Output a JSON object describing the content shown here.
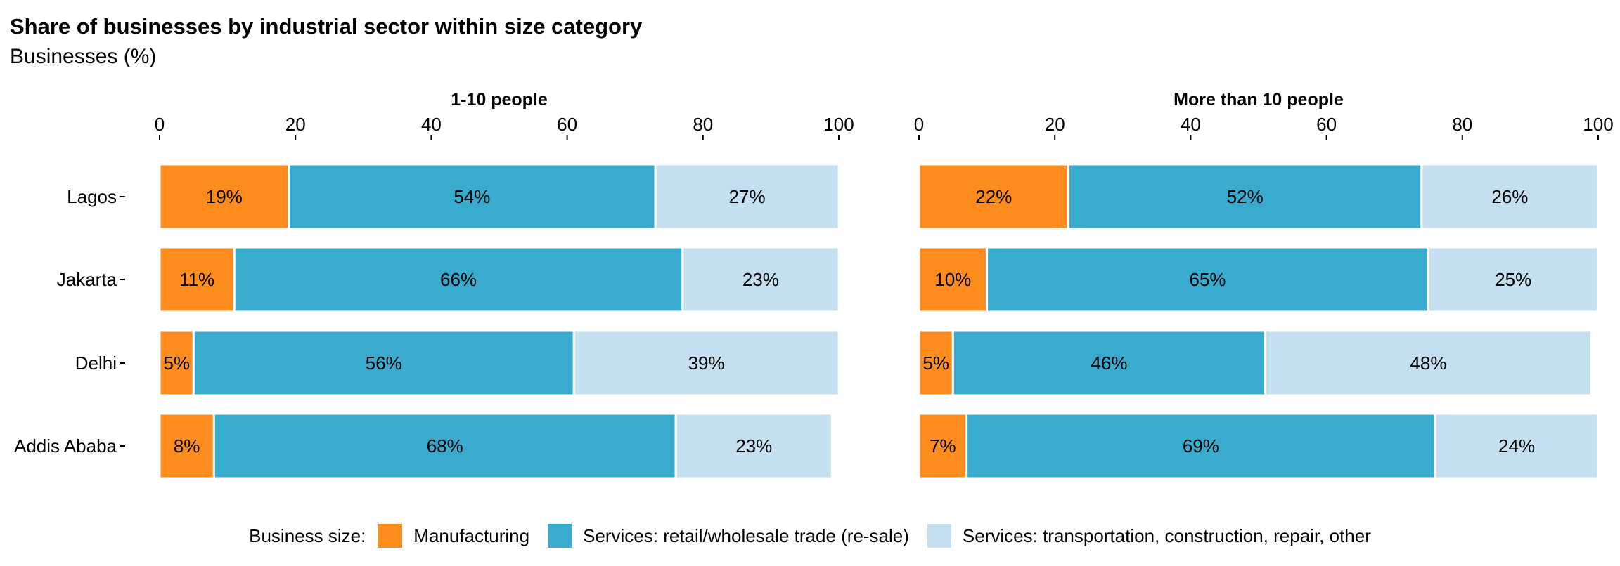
{
  "chart_title": "Share of businesses by industrial sector within size category",
  "chart_subtitle": "Businesses (%)",
  "legend": {
    "title": "Business size:",
    "items": [
      {
        "label": "Manufacturing",
        "color": "#fb8c1d"
      },
      {
        "label": "Services: retail/wholesale trade (re-sale)",
        "color": "#38abcf"
      },
      {
        "label": "Services: transportation, construction, repair, other",
        "color": "#c4dff0"
      }
    ]
  },
  "chart_data": [
    {
      "type": "bar",
      "orientation": "horizontal",
      "stacked": true,
      "title": "1-10 people",
      "categories": [
        "Lagos",
        "Jakarta",
        "Delhi",
        "Addis Ababa"
      ],
      "xlim": [
        0,
        100
      ],
      "xticks": [
        0,
        20,
        40,
        60,
        80,
        100
      ],
      "series": [
        {
          "name": "Manufacturing",
          "values": [
            19,
            11,
            5,
            8
          ],
          "labels": [
            "19%",
            "11%",
            "5%",
            "8%"
          ]
        },
        {
          "name": "Services: retail/wholesale trade (re-sale)",
          "values": [
            54,
            66,
            56,
            68
          ],
          "labels": [
            "54%",
            "66%",
            "56%",
            "68%"
          ]
        },
        {
          "name": "Services: transportation, construction, repair, other",
          "values": [
            27,
            23,
            39,
            23
          ],
          "labels": [
            "27%",
            "23%",
            "39%",
            "23%"
          ]
        }
      ]
    },
    {
      "type": "bar",
      "orientation": "horizontal",
      "stacked": true,
      "title": "More than 10 people",
      "categories": [
        "Lagos",
        "Jakarta",
        "Delhi",
        "Addis Ababa"
      ],
      "xlim": [
        0,
        100
      ],
      "xticks": [
        0,
        20,
        40,
        60,
        80,
        100
      ],
      "series": [
        {
          "name": "Manufacturing",
          "values": [
            22,
            10,
            5,
            7
          ],
          "labels": [
            "22%",
            "10%",
            "5%",
            "7%"
          ]
        },
        {
          "name": "Services: retail/wholesale trade (re-sale)",
          "values": [
            52,
            65,
            46,
            69
          ],
          "labels": [
            "52%",
            "65%",
            "46%",
            "69%"
          ]
        },
        {
          "name": "Services: transportation, construction, repair, other",
          "values": [
            26,
            25,
            48,
            24
          ],
          "labels": [
            "26%",
            "25%",
            "48%",
            "24%"
          ]
        }
      ]
    }
  ]
}
